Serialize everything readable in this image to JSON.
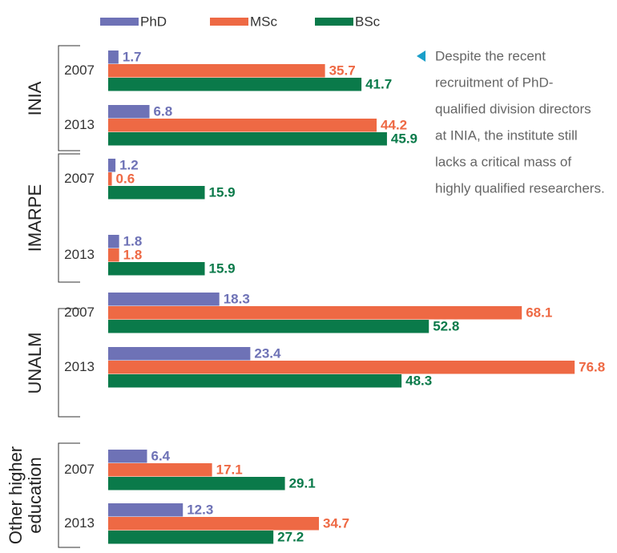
{
  "chart_data": {
    "type": "bar",
    "orientation": "horizontal",
    "groups": [
      "INIA",
      "IMARPE",
      "UNALM",
      "Other higher education"
    ],
    "years": [
      "2007",
      "2013"
    ],
    "series": [
      {
        "name": "PhD",
        "color": "#6e72b6",
        "values": [
          1.7,
          6.8,
          1.2,
          1.8,
          18.3,
          23.4,
          6.4,
          12.3
        ]
      },
      {
        "name": "MSc",
        "color": "#ee6944",
        "values": [
          35.7,
          44.2,
          0.6,
          1.8,
          68.1,
          76.8,
          17.1,
          34.7
        ]
      },
      {
        "name": "BSc",
        "color": "#0a7a4a",
        "values": [
          41.7,
          45.9,
          15.9,
          15.9,
          52.8,
          48.3,
          29.1,
          27.2
        ]
      }
    ],
    "annotation": [
      "Despite the recent",
      "recruitment of PhD-",
      "qualified division directors",
      "at INIA, the institute still",
      "lacks a critical mass of",
      "highly qualified researchers."
    ],
    "annotation_marker_color": "#1a9fc9"
  }
}
